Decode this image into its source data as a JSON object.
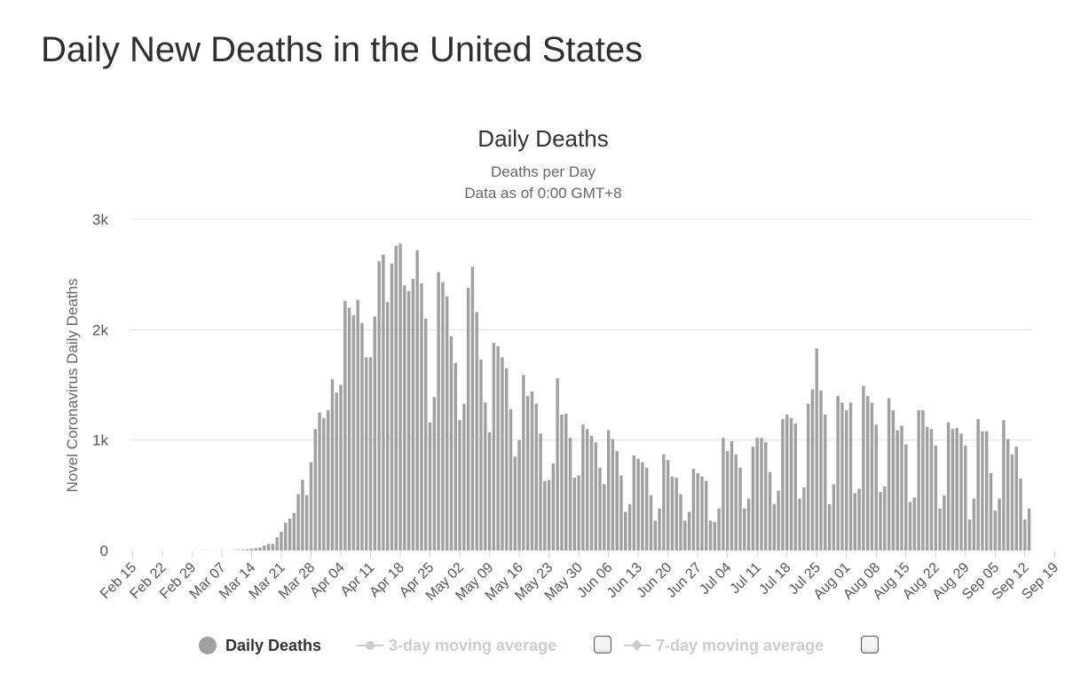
{
  "page_title": "Daily New Deaths in the United States",
  "colors": {
    "bar": "#a0a0a0",
    "grid": "#e0e0e0",
    "axis_text": "#555555",
    "inactive_legend": "#cccccc",
    "active_legend": "#333333"
  },
  "legend": {
    "items": [
      {
        "label": "Daily Deaths",
        "active": true,
        "marker": "circle"
      },
      {
        "label": "3-day moving average",
        "active": false,
        "marker": "line-circle"
      },
      {
        "label": "7-day moving average",
        "active": false,
        "marker": "line-diamond"
      }
    ]
  },
  "chart_data": {
    "type": "bar",
    "title": "Daily Deaths",
    "subtitle_lines": [
      "Deaths per Day",
      "Data as of 0:00 GMT+8"
    ],
    "ylabel": "Novel Coronavirus Daily Deaths",
    "xlabel": "",
    "ylim": [
      0,
      3000
    ],
    "yticks": [
      {
        "value": 0,
        "label": "0"
      },
      {
        "value": 1000,
        "label": "1k"
      },
      {
        "value": 2000,
        "label": "2k"
      },
      {
        "value": 3000,
        "label": "3k"
      }
    ],
    "x_tick_labels": [
      "Feb 15",
      "Feb 22",
      "Feb 29",
      "Mar 07",
      "Mar 14",
      "Mar 21",
      "Mar 28",
      "Apr 04",
      "Apr 11",
      "Apr 18",
      "Apr 25",
      "May 02",
      "May 09",
      "May 16",
      "May 23",
      "May 30",
      "Jun 06",
      "Jun 13",
      "Jun 20",
      "Jun 27",
      "Jul 04",
      "Jul 11",
      "Jul 18",
      "Jul 25",
      "Aug 01",
      "Aug 08",
      "Aug 15",
      "Aug 22",
      "Aug 29",
      "Sep 05",
      "Sep 12",
      "Sep 19"
    ],
    "start_date": "Feb 15",
    "series": [
      {
        "name": "Daily Deaths",
        "values": [
          0,
          0,
          0,
          0,
          0,
          0,
          0,
          0,
          0,
          0,
          0,
          0,
          0,
          0,
          1,
          1,
          1,
          2,
          1,
          1,
          1,
          2,
          1,
          1,
          2,
          4,
          6,
          10,
          14,
          20,
          25,
          45,
          60,
          60,
          120,
          170,
          250,
          290,
          340,
          510,
          640,
          500,
          800,
          1100,
          1250,
          1200,
          1270,
          1550,
          1430,
          1500,
          2260,
          2200,
          2130,
          2270,
          2060,
          1750,
          1750,
          2120,
          2620,
          2680,
          2250,
          2600,
          2760,
          2780,
          2400,
          2350,
          2460,
          2720,
          2420,
          2100,
          1160,
          1390,
          2520,
          2430,
          2300,
          1940,
          1700,
          1180,
          1330,
          2380,
          2570,
          2160,
          1730,
          1340,
          1070,
          1880,
          1850,
          1750,
          1650,
          1280,
          850,
          1000,
          1590,
          1400,
          1440,
          1330,
          1060,
          630,
          640,
          790,
          1560,
          1230,
          1240,
          1020,
          660,
          680,
          1140,
          1100,
          1040,
          980,
          750,
          600,
          1090,
          1010,
          900,
          680,
          350,
          420,
          860,
          830,
          800,
          750,
          500,
          270,
          380,
          870,
          820,
          670,
          660,
          510,
          270,
          350,
          740,
          700,
          670,
          630,
          270,
          260,
          380,
          1020,
          900,
          990,
          870,
          750,
          380,
          470,
          940,
          1020,
          1020,
          980,
          710,
          420,
          540,
          1190,
          1230,
          1200,
          1150,
          470,
          570,
          1330,
          1460,
          1830,
          1450,
          1230,
          420,
          600,
          1400,
          1340,
          1270,
          1340,
          520,
          560,
          1490,
          1400,
          1340,
          1140,
          530,
          580,
          1380,
          1270,
          1090,
          1130,
          960,
          440,
          480,
          1270,
          1270,
          1120,
          1100,
          950,
          380,
          500,
          1160,
          1100,
          1110,
          1060,
          950,
          280,
          470,
          1190,
          1080,
          1080,
          700,
          360,
          470,
          1180,
          1010,
          870,
          940,
          650,
          280,
          380
        ]
      }
    ]
  }
}
